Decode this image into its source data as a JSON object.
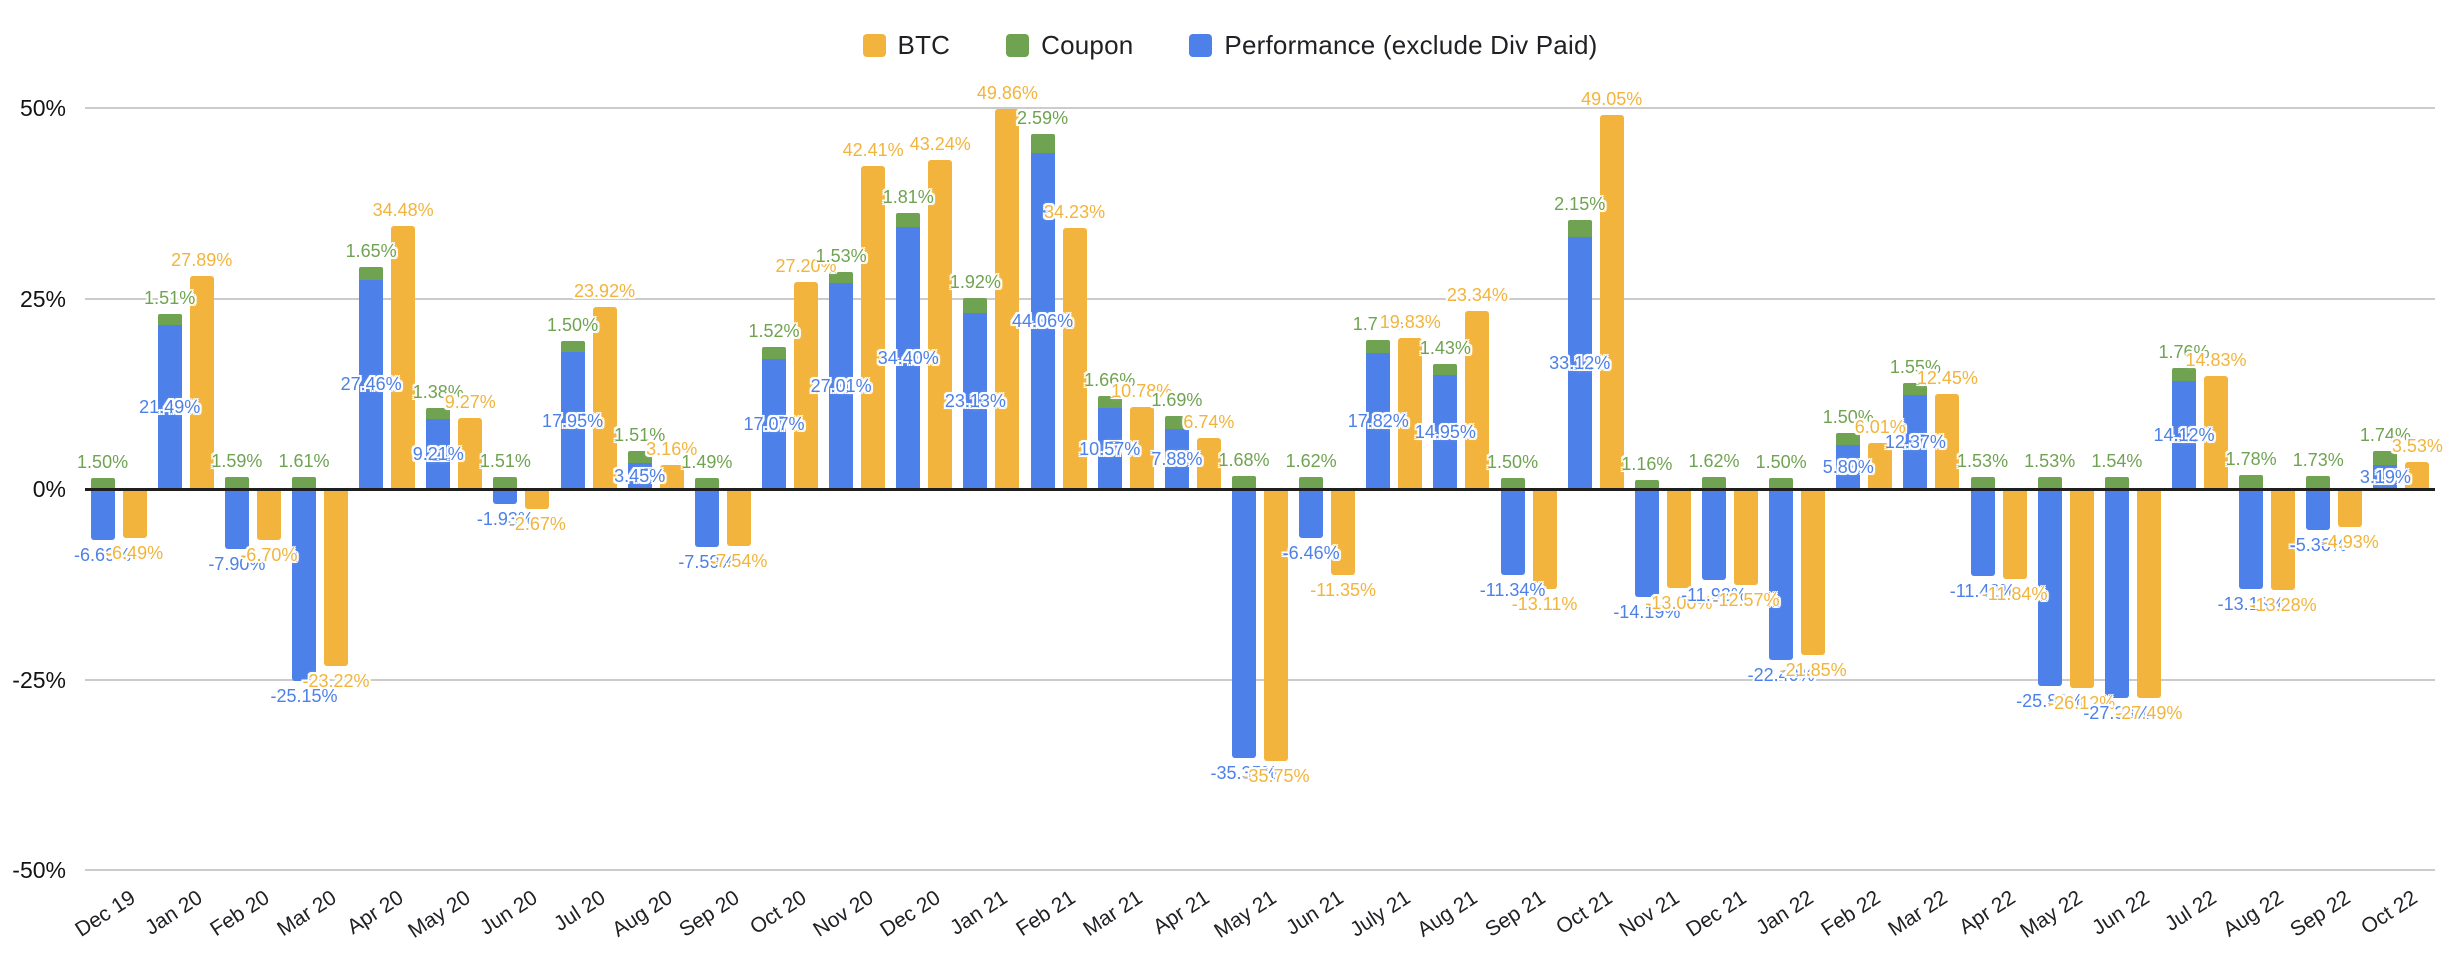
{
  "legend": [
    {
      "label": "BTC",
      "color": "#F2B43C"
    },
    {
      "label": "Coupon",
      "color": "#6FA351"
    },
    {
      "label": "Performance (exclude Div Paid)",
      "color": "#4D80E8"
    }
  ],
  "chart_data": {
    "type": "bar",
    "title": "",
    "xlabel": "",
    "ylabel": "",
    "ylim": [
      -50,
      50
    ],
    "y_tick_labels": [
      "50%",
      "25%",
      "0%",
      "-25%",
      "-50%"
    ],
    "grid": true,
    "legend_position": "top",
    "stacking": "Coupon is stacked on top of Performance (exclude Div Paid); BTC is a separate bar per month",
    "label_format": "two decimals with percent sign",
    "categories": [
      "Dec 19",
      "Jan 20",
      "Feb 20",
      "Mar 20",
      "Apr 20",
      "May 20",
      "Jun 20",
      "Jul 20",
      "Aug 20",
      "Sep 20",
      "Oct 20",
      "Nov 20",
      "Dec 20",
      "Jan 21",
      "Feb 21",
      "Mar 21",
      "Apr 21",
      "May 21",
      "Jun 21",
      "July 21",
      "Aug 21",
      "Sep 21",
      "Oct 21",
      "Nov 21",
      "Dec 21",
      "Jan 22",
      "Feb 22",
      "Mar 22",
      "Apr 22",
      "May 22",
      "Jun 22",
      "Jul 22",
      "Aug 22",
      "Sep 22",
      "Oct 22"
    ],
    "series": [
      {
        "name": "BTC",
        "color": "#F2B43C",
        "values": [
          -6.49,
          27.89,
          -6.7,
          -23.22,
          34.48,
          9.27,
          -2.67,
          23.92,
          3.16,
          -7.54,
          27.2,
          42.41,
          43.24,
          49.86,
          34.23,
          10.78,
          6.74,
          -35.75,
          -11.35,
          19.83,
          23.34,
          -13.11,
          49.05,
          -13.0,
          -12.57,
          -21.85,
          6.01,
          12.45,
          -11.84,
          -26.12,
          -27.49,
          14.83,
          -13.28,
          -4.93,
          3.53
        ]
      },
      {
        "name": "Coupon",
        "color": "#6FA351",
        "values": [
          1.5,
          1.51,
          1.59,
          1.61,
          1.65,
          1.38,
          1.51,
          1.5,
          1.51,
          1.49,
          1.52,
          1.53,
          1.81,
          1.92,
          2.59,
          1.66,
          1.69,
          1.68,
          1.62,
          1.71,
          1.43,
          1.5,
          2.15,
          1.16,
          1.62,
          1.5,
          1.5,
          1.55,
          1.53,
          1.53,
          1.54,
          1.76,
          1.78,
          1.73,
          1.74
        ]
      },
      {
        "name": "Performance (exclude Div Paid)",
        "color": "#4D80E8",
        "values": [
          -6.69,
          21.49,
          -7.9,
          -25.15,
          27.46,
          9.21,
          -1.93,
          17.95,
          3.45,
          -7.59,
          17.07,
          27.01,
          34.4,
          23.13,
          44.06,
          10.57,
          7.88,
          -35.35,
          -6.46,
          17.82,
          14.95,
          -11.34,
          33.12,
          -14.19,
          -11.92,
          -22.4,
          5.8,
          12.37,
          -11.42,
          -25.83,
          -27.38,
          14.12,
          -13.13,
          -5.36,
          3.19
        ]
      }
    ]
  }
}
